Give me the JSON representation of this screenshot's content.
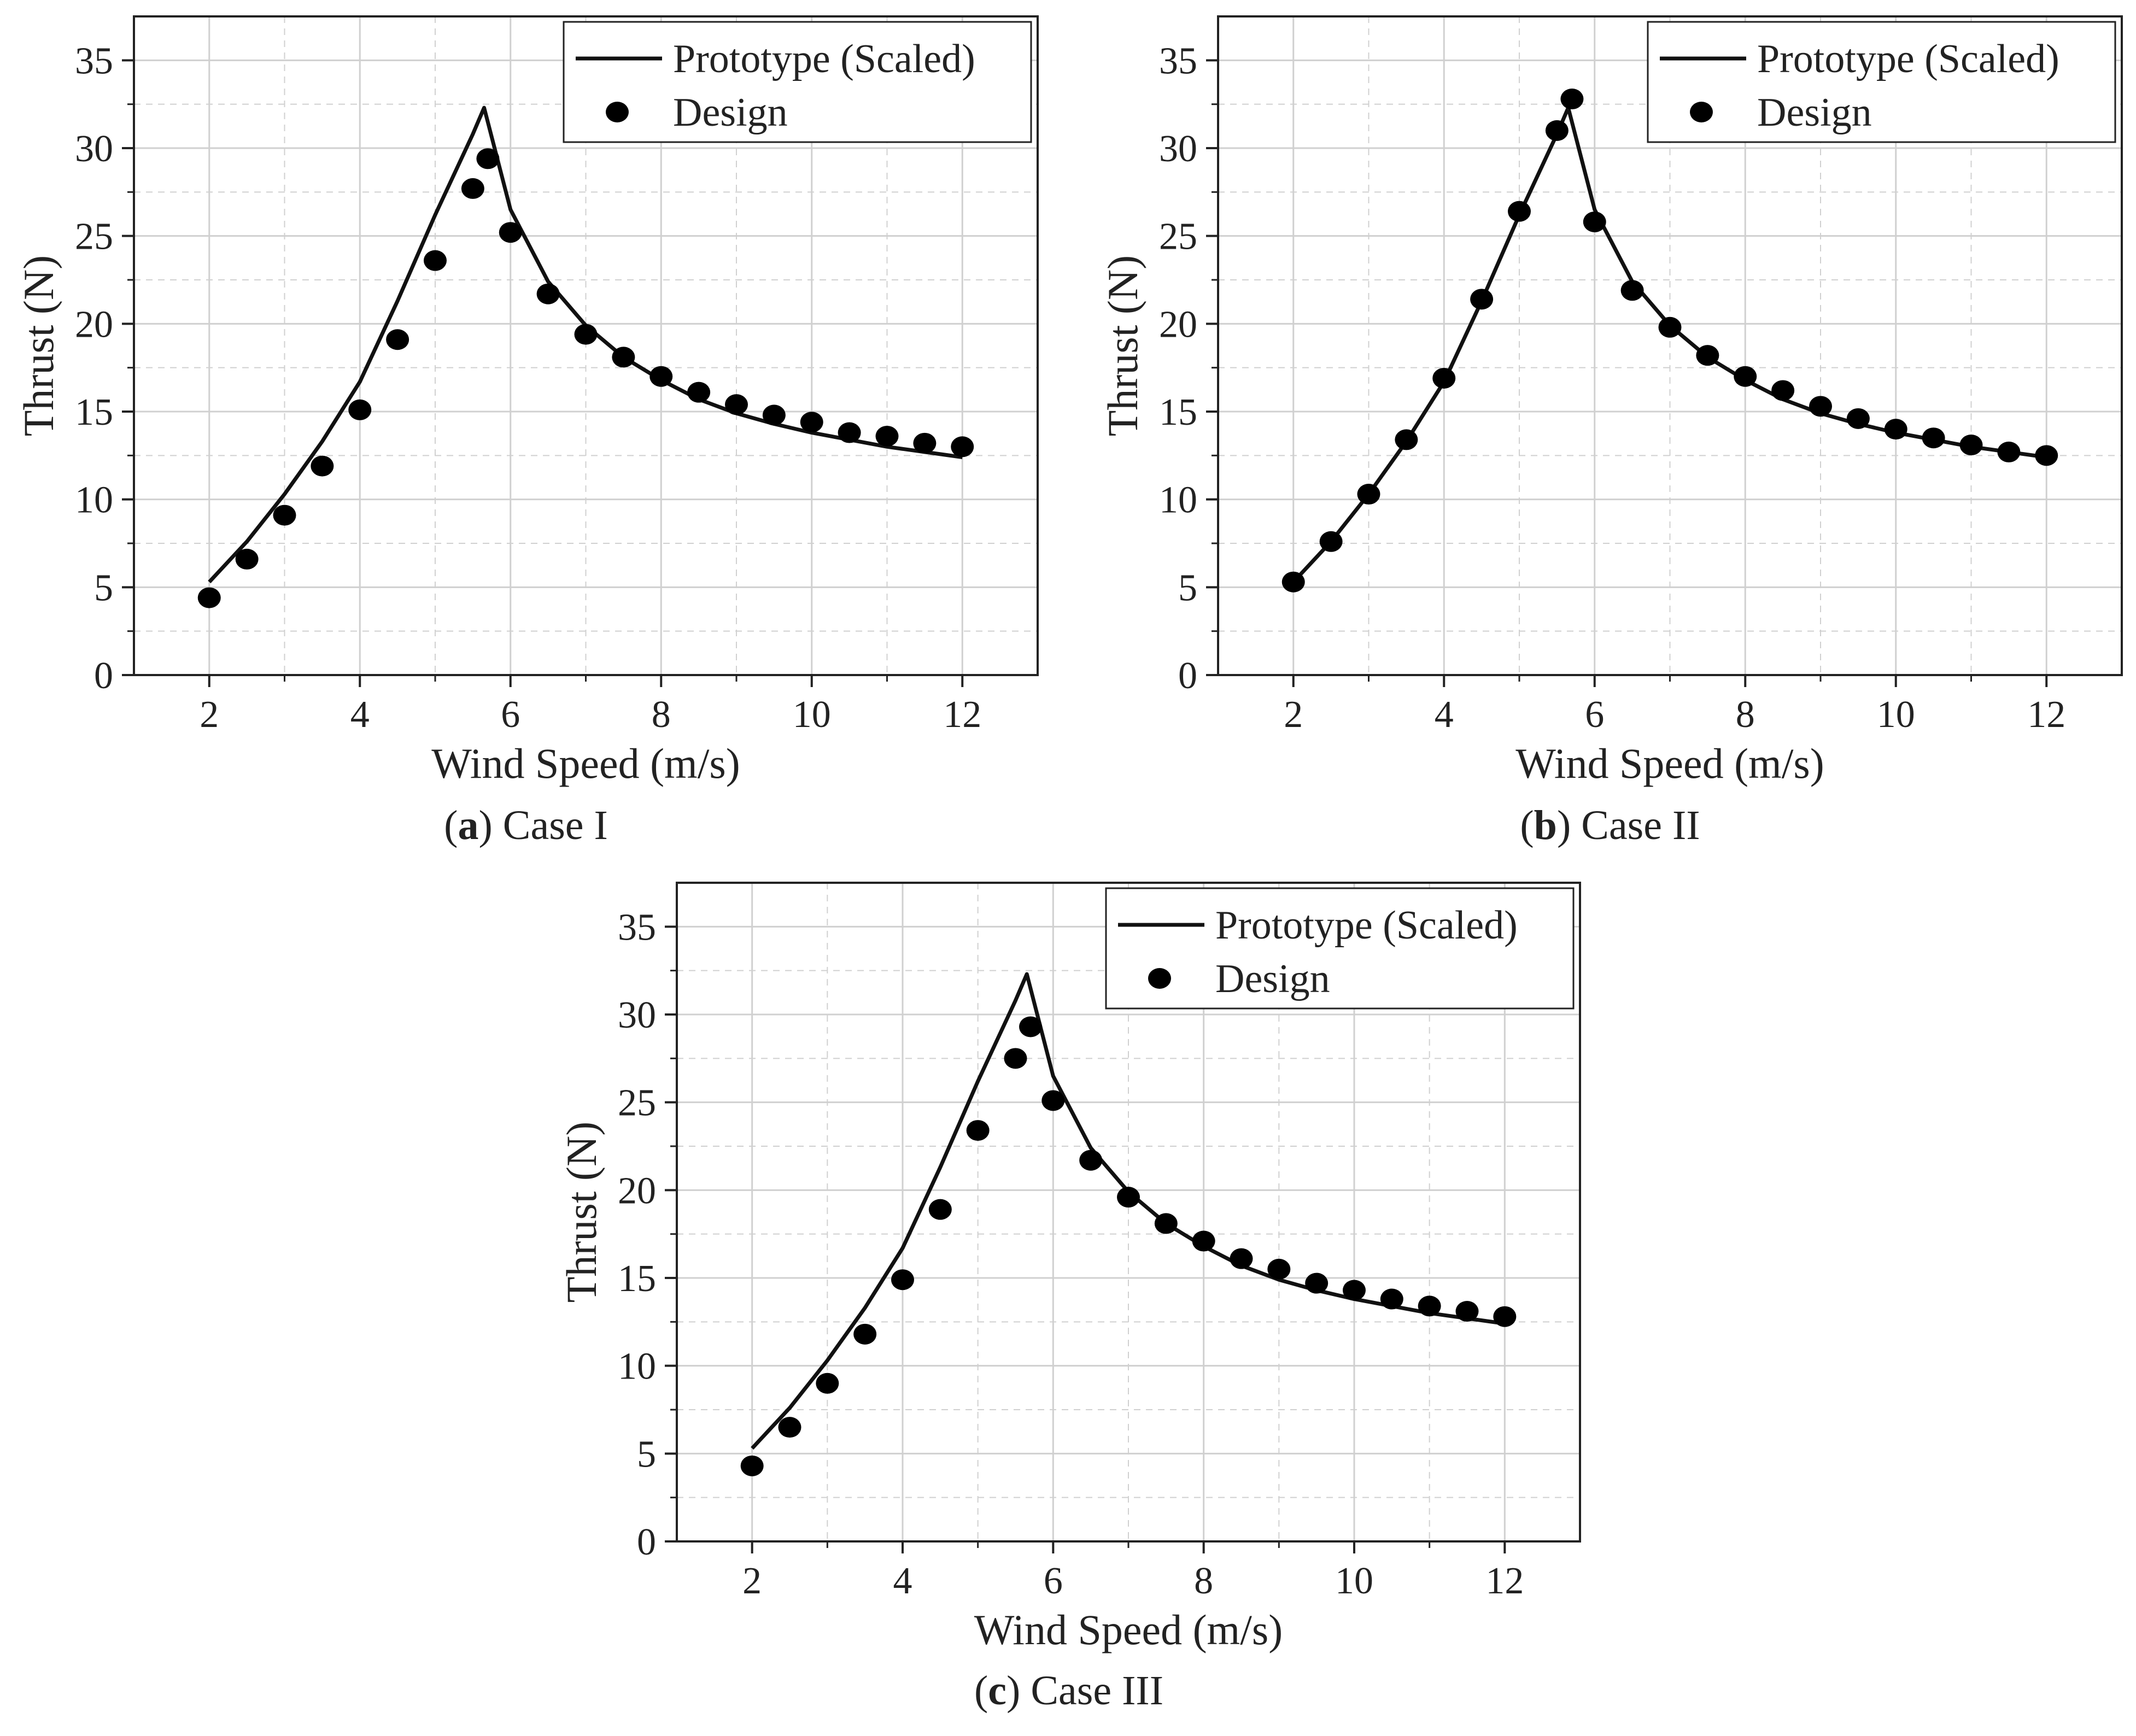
{
  "colors": {
    "line": "#111111",
    "marker": "#000000",
    "grid": "#d0d0d0",
    "axis": "#222222",
    "background": "#ffffff"
  },
  "chart_data": [
    {
      "id": "a",
      "type": "line+scatter",
      "caption_letter": "a",
      "caption_text": "Case I",
      "xlabel": "Wind Speed (m/s)",
      "ylabel": "Thrust (N)",
      "xlim": [
        1,
        13
      ],
      "ylim": [
        0,
        37.5
      ],
      "xticks": [
        2,
        4,
        6,
        8,
        10,
        12
      ],
      "yticks": [
        0,
        5,
        10,
        15,
        20,
        25,
        30,
        35
      ],
      "grid": true,
      "legend_position": "top-right",
      "series": [
        {
          "name": "Prototype (Scaled)",
          "kind": "line",
          "x": [
            2,
            2.5,
            3,
            3.5,
            4,
            4.5,
            5,
            5.5,
            5.65,
            6,
            6.5,
            7,
            7.5,
            8,
            8.5,
            9,
            9.5,
            10,
            10.5,
            11,
            11.5,
            12
          ],
          "y": [
            5.3,
            7.6,
            10.3,
            13.3,
            16.7,
            21.3,
            26.2,
            30.8,
            32.3,
            26.5,
            22.4,
            19.9,
            18.1,
            16.8,
            15.7,
            14.9,
            14.3,
            13.8,
            13.4,
            13.0,
            12.7,
            12.4
          ]
        },
        {
          "name": "Design",
          "kind": "scatter",
          "x": [
            2,
            2.5,
            3,
            3.5,
            4,
            4.5,
            5,
            5.5,
            5.7,
            6,
            6.5,
            7,
            7.5,
            8,
            8.5,
            9,
            9.5,
            10,
            10.5,
            11,
            11.5,
            12
          ],
          "y": [
            4.4,
            6.6,
            9.1,
            11.9,
            15.1,
            19.1,
            23.6,
            27.7,
            29.4,
            25.2,
            21.7,
            19.4,
            18.1,
            17.0,
            16.1,
            15.4,
            14.8,
            14.4,
            13.8,
            13.6,
            13.2,
            13.0
          ]
        }
      ]
    },
    {
      "id": "b",
      "type": "line+scatter",
      "caption_letter": "b",
      "caption_text": "Case II",
      "xlabel": "Wind Speed (m/s)",
      "ylabel": "Thrust (N)",
      "xlim": [
        1,
        13
      ],
      "ylim": [
        0,
        37.5
      ],
      "xticks": [
        2,
        4,
        6,
        8,
        10,
        12
      ],
      "yticks": [
        0,
        5,
        10,
        15,
        20,
        25,
        30,
        35
      ],
      "grid": true,
      "legend_position": "top-right",
      "series": [
        {
          "name": "Prototype (Scaled)",
          "kind": "line",
          "x": [
            2,
            2.5,
            3,
            3.5,
            4,
            4.5,
            5,
            5.5,
            5.65,
            6,
            6.5,
            7,
            7.5,
            8,
            8.5,
            9,
            9.5,
            10,
            10.5,
            11,
            11.5,
            12
          ],
          "y": [
            5.3,
            7.6,
            10.3,
            13.3,
            16.7,
            21.3,
            26.2,
            30.8,
            32.3,
            26.5,
            22.4,
            19.9,
            18.1,
            16.8,
            15.7,
            14.9,
            14.3,
            13.8,
            13.4,
            13.0,
            12.7,
            12.4
          ]
        },
        {
          "name": "Design",
          "kind": "scatter",
          "x": [
            2,
            2.5,
            3,
            3.5,
            4,
            4.5,
            5,
            5.5,
            5.7,
            6,
            6.5,
            7,
            7.5,
            8,
            8.5,
            9,
            9.5,
            10,
            10.5,
            11,
            11.5,
            12
          ],
          "y": [
            5.3,
            7.6,
            10.3,
            13.4,
            16.9,
            21.4,
            26.4,
            31.0,
            32.8,
            25.8,
            21.9,
            19.8,
            18.2,
            17.0,
            16.2,
            15.3,
            14.6,
            14.0,
            13.5,
            13.1,
            12.7,
            12.5
          ]
        }
      ]
    },
    {
      "id": "c",
      "type": "line+scatter",
      "caption_letter": "c",
      "caption_text": "Case III",
      "xlabel": "Wind Speed (m/s)",
      "ylabel": "Thrust (N)",
      "xlim": [
        1,
        13
      ],
      "ylim": [
        0,
        37.5
      ],
      "xticks": [
        2,
        4,
        6,
        8,
        10,
        12
      ],
      "yticks": [
        0,
        5,
        10,
        15,
        20,
        25,
        30,
        35
      ],
      "grid": true,
      "legend_position": "top-right",
      "series": [
        {
          "name": "Prototype (Scaled)",
          "kind": "line",
          "x": [
            2,
            2.5,
            3,
            3.5,
            4,
            4.5,
            5,
            5.5,
            5.65,
            6,
            6.5,
            7,
            7.5,
            8,
            8.5,
            9,
            9.5,
            10,
            10.5,
            11,
            11.5,
            12
          ],
          "y": [
            5.3,
            7.6,
            10.3,
            13.3,
            16.7,
            21.3,
            26.2,
            30.8,
            32.3,
            26.5,
            22.4,
            19.9,
            18.1,
            16.8,
            15.7,
            14.9,
            14.3,
            13.8,
            13.4,
            13.0,
            12.7,
            12.4
          ]
        },
        {
          "name": "Design",
          "kind": "scatter",
          "x": [
            2,
            2.5,
            3,
            3.5,
            4,
            4.5,
            5,
            5.5,
            5.7,
            6,
            6.5,
            7,
            7.5,
            8,
            8.5,
            9,
            9.5,
            10,
            10.5,
            11,
            11.5,
            12
          ],
          "y": [
            4.3,
            6.5,
            9.0,
            11.8,
            14.9,
            18.9,
            23.4,
            27.5,
            29.3,
            25.1,
            21.7,
            19.6,
            18.1,
            17.1,
            16.1,
            15.5,
            14.7,
            14.3,
            13.8,
            13.4,
            13.1,
            12.8
          ]
        }
      ]
    }
  ]
}
